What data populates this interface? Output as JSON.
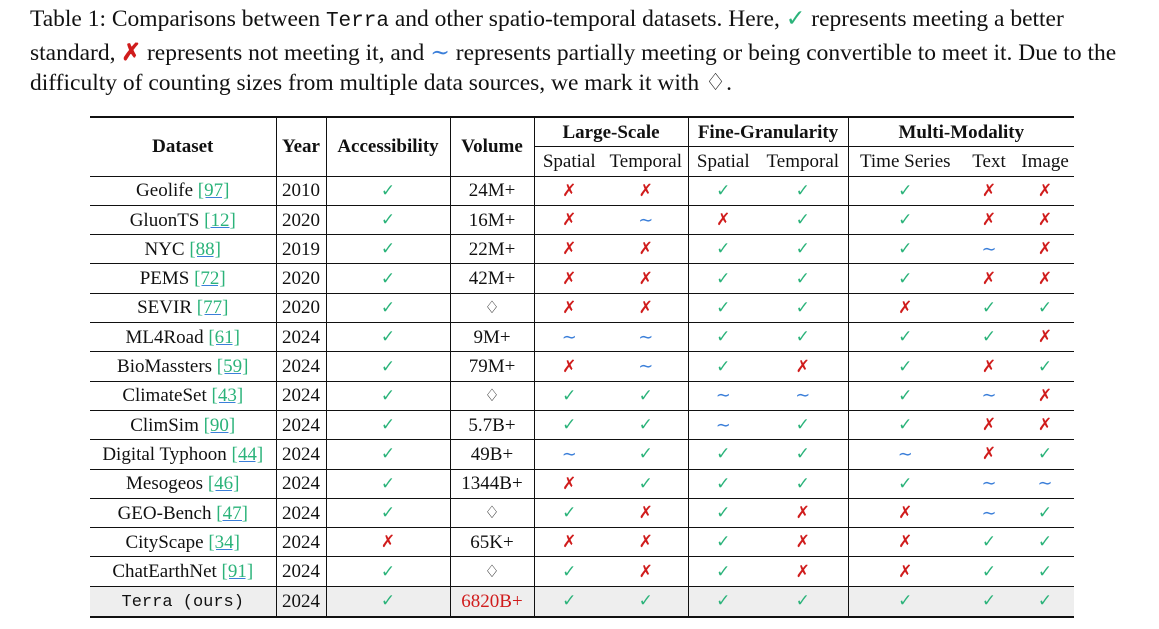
{
  "caption": {
    "lead": "Table 1: Comparisons between ",
    "name": "Terra",
    "p1": " and other spatio-temporal datasets. Here, ",
    "p2": " represents meeting a better standard, ",
    "p3": " represents not meeting it, and ",
    "p4": " represents partially meeting or being convertible to meet it. Due to the difficulty of counting sizes from multiple data sources, we mark it with ",
    "p5": ".",
    "check_symbol": "✓",
    "cross_symbol": "✗",
    "tilde_symbol": "∼",
    "diamond_symbol": "♢"
  },
  "symbols": {
    "check": "✓",
    "cross": "✗",
    "tilde": "∼",
    "diamond": "♢"
  },
  "colors": {
    "check": "#2bb37a",
    "cross": "#d01c1c",
    "tilde": "#3b7fd9",
    "highlight": "#d01c1c"
  },
  "header": {
    "dataset": "Dataset",
    "year": "Year",
    "accessibility": "Accessibility",
    "volume": "Volume",
    "large_scale": "Large-Scale",
    "fine_granularity": "Fine-Granularity",
    "multi_modality": "Multi-Modality",
    "ls_spatial": "Spatial",
    "ls_temporal": "Temporal",
    "fg_spatial": "Spatial",
    "fg_temporal": "Temporal",
    "mm_ts": "Time Series",
    "mm_text": "Text",
    "mm_image": "Image"
  },
  "rows": [
    {
      "name": "Geolife",
      "ref": "[97]",
      "year": "2010",
      "acc": "c",
      "volume": "24M+",
      "cells": [
        "x",
        "x",
        "c",
        "c",
        "c",
        "x",
        "x"
      ]
    },
    {
      "name": "GluonTS",
      "ref": "[12]",
      "year": "2020",
      "acc": "c",
      "volume": "16M+",
      "cells": [
        "x",
        "t",
        "x",
        "c",
        "c",
        "x",
        "x"
      ]
    },
    {
      "name": "NYC",
      "ref": "[88]",
      "year": "2019",
      "acc": "c",
      "volume": "22M+",
      "cells": [
        "x",
        "x",
        "c",
        "c",
        "c",
        "t",
        "x"
      ]
    },
    {
      "name": "PEMS",
      "ref": "[72]",
      "year": "2020",
      "acc": "c",
      "volume": "42M+",
      "cells": [
        "x",
        "x",
        "c",
        "c",
        "c",
        "x",
        "x"
      ]
    },
    {
      "name": "SEVIR",
      "ref": "[77]",
      "year": "2020",
      "acc": "c",
      "volume": "♢",
      "cells": [
        "x",
        "x",
        "c",
        "c",
        "x",
        "c",
        "c"
      ]
    },
    {
      "name": "ML4Road",
      "ref": "[61]",
      "year": "2024",
      "acc": "c",
      "volume": "9M+",
      "cells": [
        "t",
        "t",
        "c",
        "c",
        "c",
        "c",
        "x"
      ]
    },
    {
      "name": "BioMassters",
      "ref": "[59]",
      "year": "2024",
      "acc": "c",
      "volume": "79M+",
      "cells": [
        "x",
        "t",
        "c",
        "x",
        "c",
        "x",
        "c"
      ]
    },
    {
      "name": "ClimateSet",
      "ref": "[43]",
      "year": "2024",
      "acc": "c",
      "volume": "♢",
      "cells": [
        "c",
        "c",
        "t",
        "t",
        "c",
        "t",
        "x"
      ]
    },
    {
      "name": "ClimSim",
      "ref": "[90]",
      "year": "2024",
      "acc": "c",
      "volume": "5.7B+",
      "cells": [
        "c",
        "c",
        "t",
        "c",
        "c",
        "x",
        "x"
      ]
    },
    {
      "name": "Digital Typhoon",
      "ref": "[44]",
      "year": "2024",
      "acc": "c",
      "volume": "49B+",
      "cells": [
        "t",
        "c",
        "c",
        "c",
        "t",
        "x",
        "c"
      ]
    },
    {
      "name": "Mesogeos",
      "ref": "[46]",
      "year": "2024",
      "acc": "c",
      "volume": "1344B+",
      "cells": [
        "x",
        "c",
        "c",
        "c",
        "c",
        "t",
        "t"
      ]
    },
    {
      "name": "GEO-Bench",
      "ref": "[47]",
      "year": "2024",
      "acc": "c",
      "volume": "♢",
      "cells": [
        "c",
        "x",
        "c",
        "x",
        "x",
        "t",
        "c"
      ]
    },
    {
      "name": "CityScape",
      "ref": "[34]",
      "year": "2024",
      "acc": "x",
      "volume": "65K+",
      "cells": [
        "x",
        "x",
        "c",
        "x",
        "x",
        "c",
        "c"
      ]
    },
    {
      "name": "ChatEarthNet",
      "ref": "[91]",
      "year": "2024",
      "acc": "c",
      "volume": "♢",
      "cells": [
        "c",
        "x",
        "c",
        "x",
        "x",
        "c",
        "c"
      ]
    }
  ],
  "ours": {
    "name": "Terra (ours)",
    "year": "2024",
    "acc": "c",
    "volume": "6820B+",
    "cells": [
      "c",
      "c",
      "c",
      "c",
      "c",
      "c",
      "c"
    ]
  }
}
